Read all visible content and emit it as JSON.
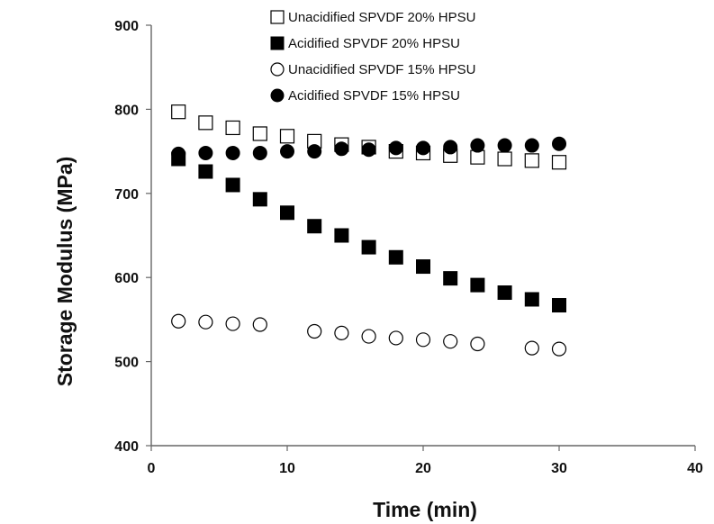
{
  "chart_data": {
    "type": "scatter",
    "title": "",
    "xlabel": "Time (min)",
    "ylabel": "Storage Modulus (MPa)",
    "xlim": [
      0,
      40
    ],
    "ylim": [
      400,
      900
    ],
    "xticks": [
      0,
      10,
      20,
      30,
      40
    ],
    "yticks": [
      400,
      500,
      600,
      700,
      800,
      900
    ],
    "x_tick_labels": [
      "0",
      "10",
      "20",
      "30",
      "40"
    ],
    "y_tick_labels": [
      "400",
      "500",
      "600",
      "700",
      "800",
      "900"
    ],
    "grid": false,
    "legend_position": "top",
    "series": [
      {
        "name": "Unacidified SPVDF 20% HPSU",
        "marker": "square-open",
        "color": "#000000",
        "x": [
          2,
          4,
          6,
          8,
          10,
          12,
          14,
          16,
          18,
          20,
          22,
          24,
          26,
          28,
          30
        ],
        "y": [
          797,
          784,
          778,
          771,
          768,
          762,
          758,
          755,
          750,
          748,
          745,
          743,
          741,
          739,
          737
        ]
      },
      {
        "name": "Acidified SPVDF 20% HPSU",
        "marker": "square-filled",
        "color": "#000000",
        "x": [
          2,
          4,
          6,
          8,
          10,
          12,
          14,
          16,
          18,
          20,
          22,
          24,
          26,
          28,
          30
        ],
        "y": [
          741,
          726,
          710,
          693,
          677,
          661,
          650,
          636,
          624,
          613,
          599,
          591,
          582,
          574,
          567
        ]
      },
      {
        "name": "Unacidified SPVDF 15% HPSU",
        "marker": "circle-open",
        "color": "#000000",
        "x": [
          2,
          4,
          6,
          8,
          12,
          14,
          16,
          18,
          20,
          22,
          24,
          28,
          30
        ],
        "y": [
          548,
          547,
          545,
          544,
          536,
          534,
          530,
          528,
          526,
          524,
          521,
          516,
          515
        ]
      },
      {
        "name": "Acidified SPVDF 15% HPSU",
        "marker": "circle-filled",
        "color": "#000000",
        "x": [
          2,
          4,
          6,
          8,
          10,
          12,
          14,
          16,
          18,
          20,
          22,
          24,
          26,
          28,
          30
        ],
        "y": [
          747,
          748,
          748,
          748,
          750,
          750,
          753,
          752,
          754,
          754,
          755,
          757,
          757,
          757,
          759
        ]
      }
    ]
  }
}
